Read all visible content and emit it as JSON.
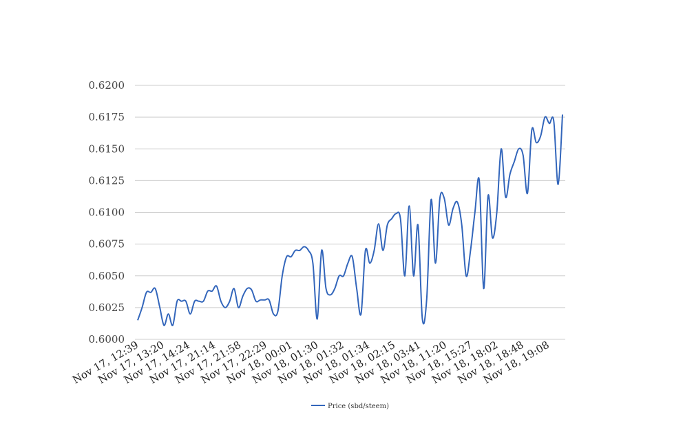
{
  "chart_data": {
    "type": "line",
    "ylim": [
      0.6,
      0.62
    ],
    "yticks": [
      "0.6000",
      "0.6025",
      "0.6050",
      "0.6075",
      "0.6100",
      "0.6125",
      "0.6150",
      "0.6175",
      "0.6200"
    ],
    "xtick_labels": [
      "Nov 17, 12:39",
      "Nov 17, 13:20",
      "Nov 17, 14:24",
      "Nov 17, 21:14",
      "Nov 17, 21:58",
      "Nov 17, 22:29",
      "Nov 18, 00:01",
      "Nov 18, 01:30",
      "Nov 18, 01:32",
      "Nov 18, 01:34",
      "Nov 18, 02:15",
      "Nov 18, 03:41",
      "Nov 18, 11:20",
      "Nov 18, 15:27",
      "Nov 18, 18:02",
      "Nov 18, 18:48",
      "Nov 18, 19:08"
    ],
    "grid": true,
    "legend_position": "bottom",
    "series": [
      {
        "name": "Price (sbd/steem)",
        "color": "#3366bb",
        "values": [
          0.6015,
          0.6025,
          0.6037,
          0.6037,
          0.604,
          0.6026,
          0.6011,
          0.602,
          0.6011,
          0.603,
          0.603,
          0.603,
          0.602,
          0.603,
          0.603,
          0.603,
          0.6038,
          0.6038,
          0.6042,
          0.603,
          0.6025,
          0.603,
          0.604,
          0.6025,
          0.6034,
          0.604,
          0.6039,
          0.603,
          0.6031,
          0.6031,
          0.6031,
          0.602,
          0.6022,
          0.605,
          0.6065,
          0.6065,
          0.607,
          0.607,
          0.6073,
          0.607,
          0.606,
          0.6016,
          0.607,
          0.604,
          0.6035,
          0.604,
          0.605,
          0.605,
          0.606,
          0.6065,
          0.604,
          0.602,
          0.607,
          0.606,
          0.607,
          0.6091,
          0.607,
          0.609,
          0.6095,
          0.6099,
          0.6095,
          0.605,
          0.6105,
          0.605,
          0.609,
          0.6016,
          0.6032,
          0.611,
          0.606,
          0.6111,
          0.6111,
          0.609,
          0.6103,
          0.6108,
          0.609,
          0.605,
          0.607,
          0.61,
          0.6125,
          0.604,
          0.6113,
          0.608,
          0.61,
          0.615,
          0.6112,
          0.613,
          0.614,
          0.615,
          0.6145,
          0.6115,
          0.6165,
          0.6155,
          0.616,
          0.6175,
          0.617,
          0.6172,
          0.6122,
          0.6177
        ]
      }
    ]
  }
}
